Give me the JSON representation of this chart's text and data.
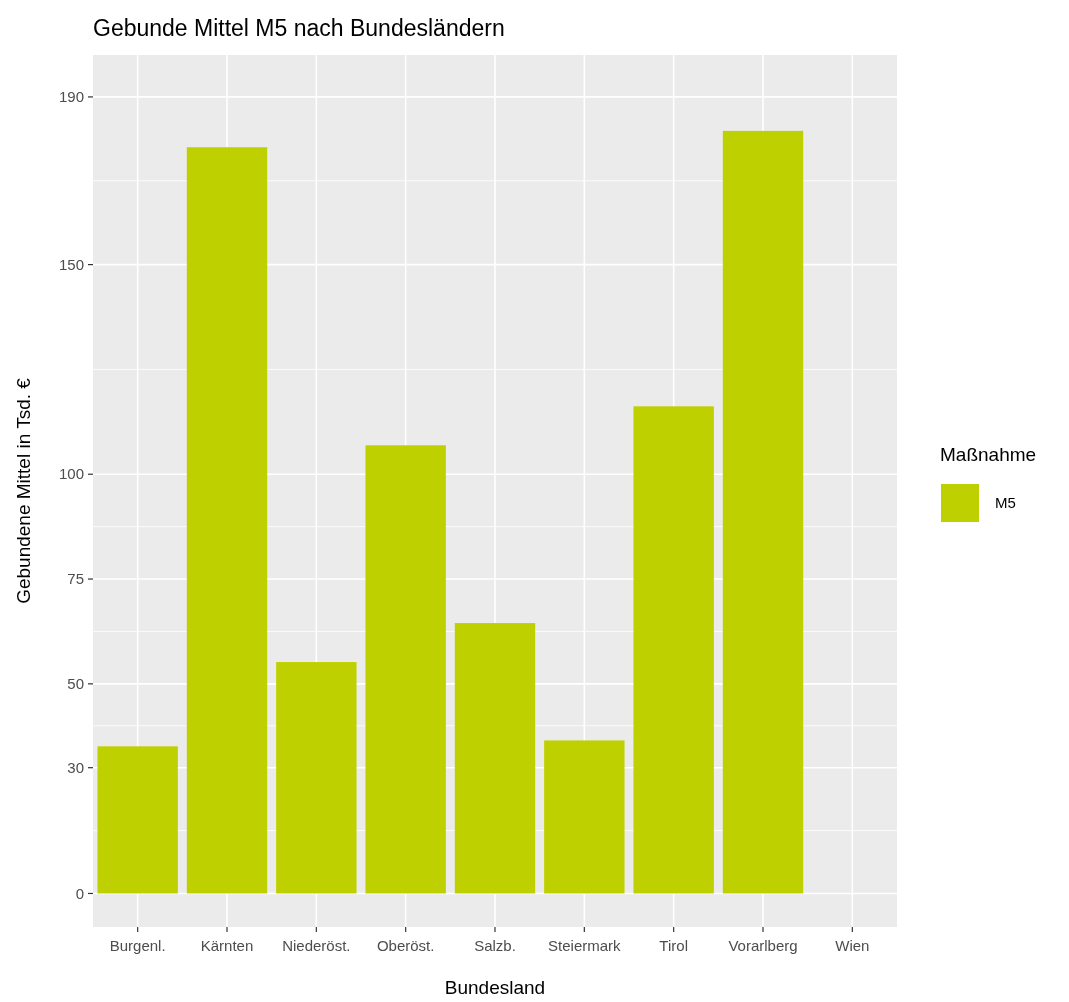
{
  "chart_data": {
    "type": "bar",
    "title": "Gebunde Mittel M5 nach Bundesländern",
    "xlabel": "Bundesland",
    "ylabel": "Gebundene Mittel in Tsd. €",
    "legend_title": "Maßnahme",
    "categories": [
      "Burgenl.",
      "Kärnten",
      "Niederöst.",
      "Oberöst.",
      "Salzb.",
      "Steiermark",
      "Tirol",
      "Vorarlberg",
      "Wien"
    ],
    "series": [
      {
        "name": "M5",
        "color": "#bed000",
        "values": [
          35.1,
          178,
          55.2,
          106.9,
          64.5,
          36.5,
          116.2,
          181.9,
          null
        ]
      }
    ],
    "ylim": [
      -8,
      200
    ],
    "yticks": [
      0,
      30,
      50,
      75,
      100,
      150,
      190
    ],
    "grid": true,
    "legend": "right"
  }
}
